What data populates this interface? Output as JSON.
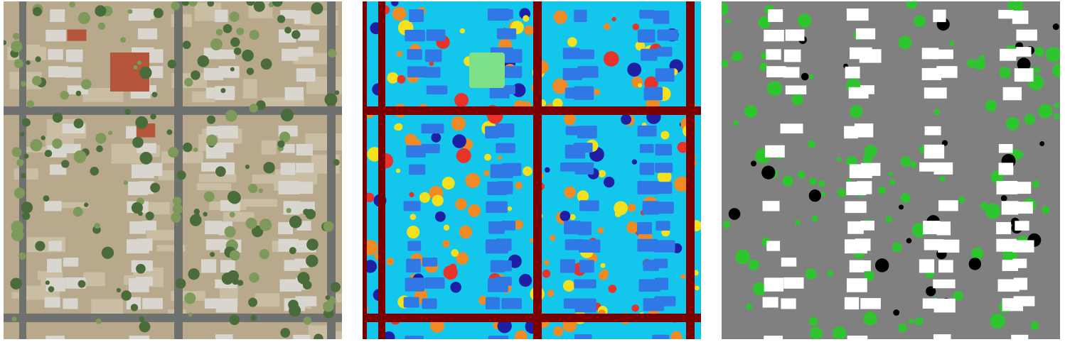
{
  "panels": [
    {
      "id": "satellite",
      "kind": "aerial-photo"
    },
    {
      "id": "segmentation",
      "kind": "multi-class-map"
    },
    {
      "id": "classification",
      "kind": "land-cover-map"
    }
  ],
  "colors": {
    "photo_ground": "#b8a98c",
    "photo_road": "#6f716e",
    "photo_roof": "#d9d6cf",
    "photo_roof_red": "#b5553a",
    "photo_tree": "#4a6b3a",
    "photo_lawn": "#7e9a5a",
    "seg_road": "#7a0000",
    "seg_ground": "#12c6ec",
    "seg_building": "#2f78e6",
    "seg_veg_red": "#e8322a",
    "seg_veg_orange": "#f08a24",
    "seg_dark_blue": "#1f1fa6",
    "seg_yellow": "#f2e11c",
    "seg_green": "#7fe08a",
    "cls_background": "#808080",
    "cls_building": "#ffffff",
    "cls_vegetation": "#2ec52e",
    "cls_shadow": "#000000"
  }
}
